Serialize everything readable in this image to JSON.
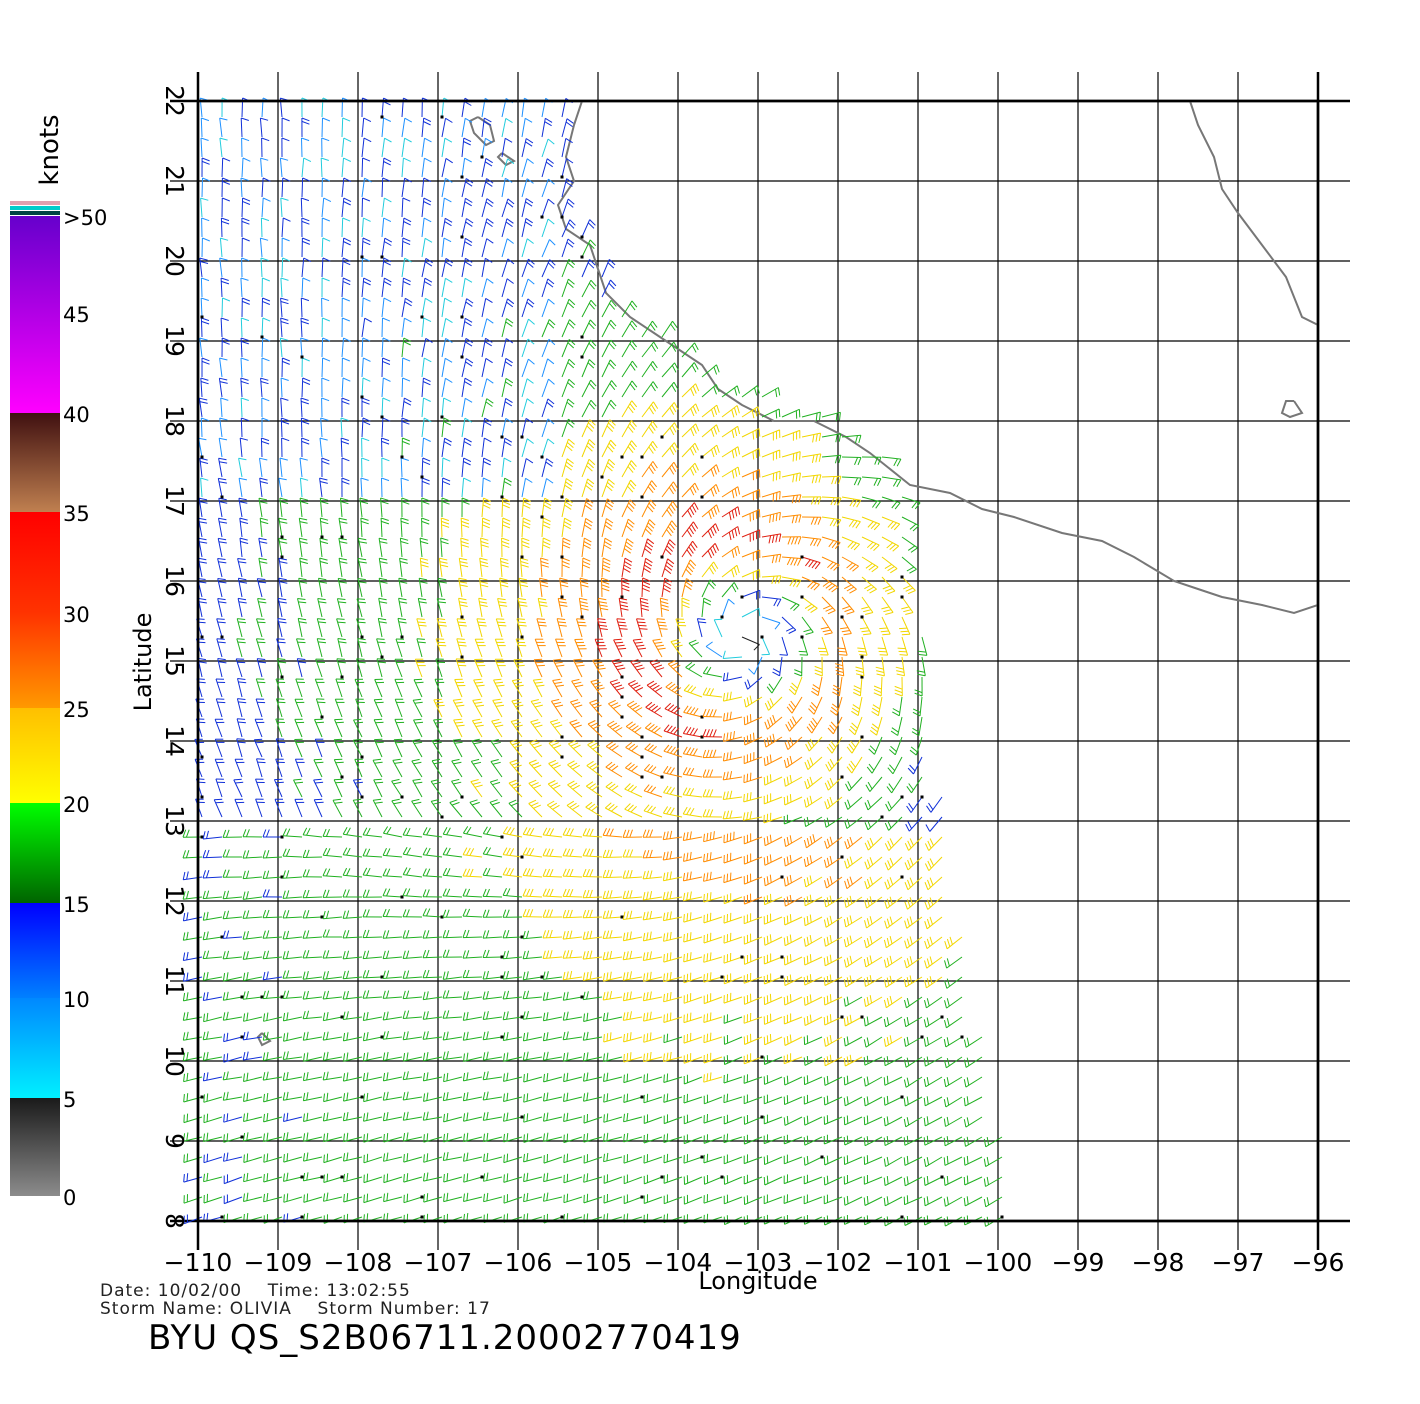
{
  "map": {
    "xlabel": "Longitude",
    "ylabel": "Latitude",
    "lon_ticks": [
      -110,
      -109,
      -108,
      -107,
      -106,
      -105,
      -104,
      -103,
      -102,
      -101,
      -100,
      -99,
      -98,
      -97,
      -96
    ],
    "lon_tick_labels": [
      "−110",
      "−109",
      "−108",
      "−107",
      "−106",
      "−105",
      "−104",
      "−103",
      "−102",
      "−101",
      "−100",
      "−99",
      "−98",
      "−97",
      "−96"
    ],
    "lat_ticks": [
      8,
      9,
      10,
      11,
      12,
      13,
      14,
      15,
      16,
      17,
      18,
      19,
      20,
      21,
      22
    ],
    "lat_tick_labels": [
      "8",
      "9",
      "10",
      "11",
      "12",
      "13",
      "14",
      "15",
      "16",
      "17",
      "18",
      "19",
      "20",
      "21",
      "22"
    ],
    "lon_range": [
      -110,
      -96
    ],
    "lat_range": [
      8,
      22
    ],
    "grid": true,
    "coastline_color": "#777777",
    "coastline_mainland": [
      [
        -105.2,
        22.0
      ],
      [
        -105.3,
        21.7
      ],
      [
        -105.4,
        21.3
      ],
      [
        -105.3,
        21.0
      ],
      [
        -105.5,
        20.7
      ],
      [
        -105.4,
        20.4
      ],
      [
        -105.1,
        20.2
      ],
      [
        -105.0,
        19.9
      ],
      [
        -104.9,
        19.6
      ],
      [
        -104.6,
        19.3
      ],
      [
        -104.3,
        19.1
      ],
      [
        -104.0,
        18.9
      ],
      [
        -103.7,
        18.7
      ],
      [
        -103.5,
        18.4
      ],
      [
        -103.2,
        18.2
      ],
      [
        -102.8,
        18.0
      ],
      [
        -102.3,
        18.0
      ],
      [
        -101.9,
        17.8
      ],
      [
        -101.6,
        17.6
      ],
      [
        -101.1,
        17.2
      ],
      [
        -100.6,
        17.1
      ],
      [
        -100.2,
        16.9
      ],
      [
        -99.8,
        16.8
      ],
      [
        -99.2,
        16.6
      ],
      [
        -98.7,
        16.5
      ],
      [
        -98.3,
        16.3
      ],
      [
        -97.8,
        16.0
      ],
      [
        -97.5,
        15.9
      ],
      [
        -97.2,
        15.8
      ],
      [
        -96.7,
        15.7
      ],
      [
        -96.3,
        15.6
      ],
      [
        -96.0,
        15.7
      ]
    ],
    "coastline_northeast": [
      [
        -96.0,
        19.2
      ],
      [
        -96.2,
        19.3
      ],
      [
        -96.4,
        19.8
      ],
      [
        -96.7,
        20.2
      ],
      [
        -97.0,
        20.6
      ],
      [
        -97.2,
        20.9
      ],
      [
        -97.3,
        21.3
      ],
      [
        -97.5,
        21.7
      ],
      [
        -97.6,
        22.0
      ]
    ],
    "islands": [
      [
        [
          -106.5,
          21.8
        ],
        [
          -106.35,
          21.7
        ],
        [
          -106.3,
          21.5
        ],
        [
          -106.4,
          21.45
        ],
        [
          -106.55,
          21.6
        ],
        [
          -106.6,
          21.75
        ],
        [
          -106.5,
          21.8
        ]
      ],
      [
        [
          -106.2,
          21.35
        ],
        [
          -106.05,
          21.25
        ],
        [
          -106.15,
          21.2
        ],
        [
          -106.25,
          21.3
        ],
        [
          -106.2,
          21.35
        ]
      ],
      [
        [
          -96.3,
          18.25
        ],
        [
          -96.2,
          18.1
        ],
        [
          -96.35,
          18.05
        ],
        [
          -96.45,
          18.1
        ],
        [
          -96.4,
          18.25
        ],
        [
          -96.3,
          18.25
        ]
      ],
      [
        [
          -109.2,
          10.35
        ],
        [
          -109.1,
          10.25
        ],
        [
          -109.2,
          10.2
        ],
        [
          -109.25,
          10.3
        ],
        [
          -109.2,
          10.35
        ]
      ]
    ],
    "swath_lon_max": [
      [
        8.0,
        -99.7
      ],
      [
        9.0,
        -99.9
      ],
      [
        10.0,
        -100.1
      ],
      [
        11.0,
        -100.3
      ],
      [
        12.0,
        -100.5
      ],
      [
        13.0,
        -100.6
      ],
      [
        14.0,
        -100.8
      ],
      [
        15.0,
        -100.9
      ],
      [
        16.0,
        -101.0
      ],
      [
        17.0,
        -101.1
      ],
      [
        17.5,
        -101.3
      ],
      [
        18.0,
        -102.0
      ],
      [
        18.5,
        -103.4
      ],
      [
        19.0,
        -104.1
      ],
      [
        19.5,
        -104.7
      ],
      [
        20.0,
        -105.1
      ],
      [
        21.0,
        -105.3
      ],
      [
        22.0,
        -105.2
      ]
    ],
    "storm_center": {
      "lon": -103.2,
      "lat": 15.3
    }
  },
  "colorbar": {
    "title": "knots",
    "tick_labels": [
      "0",
      "5",
      "10",
      "15",
      "20",
      "25",
      "30",
      "35",
      "40",
      "45",
      ">50"
    ],
    "bands": [
      {
        "from": 0,
        "to": 5,
        "color_low": "#8c8c8c",
        "color_high": "#1a1a1a"
      },
      {
        "from": 5,
        "to": 10,
        "color_low": "#00f0ff",
        "color_high": "#0088ff"
      },
      {
        "from": 10,
        "to": 15,
        "color_low": "#0080ff",
        "color_high": "#0000ff"
      },
      {
        "from": 15,
        "to": 20,
        "color_low": "#006400",
        "color_high": "#00ff00"
      },
      {
        "from": 20,
        "to": 25,
        "color_low": "#ffff00",
        "color_high": "#ffbf00"
      },
      {
        "from": 25,
        "to": 30,
        "color_low": "#ff9900",
        "color_high": "#ff3300"
      },
      {
        "from": 30,
        "to": 35,
        "color_low": "#ff3300",
        "color_high": "#ff0000"
      },
      {
        "from": 35,
        "to": 40,
        "color_low": "#c08050",
        "color_high": "#401010"
      },
      {
        "from": 40,
        "to": 50,
        "color_low": "#ff00ff",
        "color_high": "#6600cc"
      }
    ],
    "top_strip_colors": [
      "#e0a0b0",
      "#00cccc",
      "#004444"
    ]
  },
  "footer": {
    "date_line": "Date: 10/02/00    Time: 13:02:55",
    "storm_line": "Storm Name: OLIVIA    Storm Number: 17",
    "file_line": "BYU QS_S2B06711.20002770419"
  }
}
